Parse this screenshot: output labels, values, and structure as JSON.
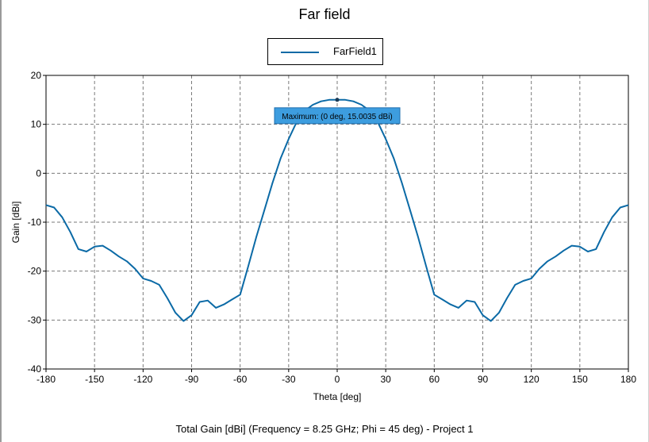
{
  "chart_data": {
    "type": "line",
    "title": "Far field",
    "xlabel": "Theta [deg]",
    "ylabel": "Gain [dBi]",
    "caption": "Total Gain [dBi] (Frequency = 8.25 GHz; Phi = 45 deg) - Project 1",
    "xlim": [
      -180,
      180
    ],
    "ylim": [
      -40,
      20
    ],
    "x_ticks": [
      -180,
      -150,
      -120,
      -90,
      -60,
      -30,
      0,
      30,
      60,
      90,
      120,
      150,
      180
    ],
    "x_tick_labels": [
      "-180",
      "-150",
      "-120",
      "-90",
      "-60",
      "-30",
      "0",
      "30",
      "60",
      "90",
      "120",
      "150",
      "180"
    ],
    "y_ticks": [
      -40,
      -30,
      -20,
      -10,
      0,
      10,
      20
    ],
    "y_tick_labels": [
      "-40",
      "-30",
      "-20",
      "-10",
      "0",
      "10",
      "20"
    ],
    "grid": true,
    "legend_position": "top-center",
    "series": [
      {
        "name": "FarField1",
        "color": "#0b6aa6",
        "x": [
          -180,
          -175,
          -170,
          -165,
          -160,
          -155,
          -150,
          -145,
          -140,
          -135,
          -130,
          -125,
          -120,
          -115,
          -110,
          -105,
          -100,
          -95,
          -90,
          -85,
          -80,
          -75,
          -70,
          -65,
          -60,
          -55,
          -50,
          -45,
          -40,
          -35,
          -30,
          -25,
          -20,
          -15,
          -10,
          -5,
          0,
          5,
          10,
          15,
          20,
          25,
          30,
          35,
          40,
          45,
          50,
          55,
          60,
          65,
          70,
          75,
          80,
          85,
          90,
          95,
          100,
          105,
          110,
          115,
          120,
          125,
          130,
          135,
          140,
          145,
          150,
          155,
          160,
          165,
          170,
          175,
          180
        ],
        "values": [
          -6.5,
          -7.0,
          -9.0,
          -12.0,
          -15.5,
          -16.0,
          -15.0,
          -14.8,
          -15.8,
          -17.0,
          -18.0,
          -19.5,
          -21.5,
          -22.0,
          -22.8,
          -25.5,
          -28.5,
          -30.2,
          -29.0,
          -26.3,
          -26.0,
          -27.5,
          -26.8,
          -25.8,
          -24.8,
          -19.0,
          -13.0,
          -7.5,
          -2.0,
          3.0,
          7.0,
          10.5,
          12.8,
          14.0,
          14.7,
          15.0,
          15.0,
          15.0,
          14.7,
          14.0,
          12.8,
          10.5,
          7.0,
          3.0,
          -2.0,
          -7.5,
          -13.0,
          -19.0,
          -24.8,
          -25.8,
          -26.8,
          -27.5,
          -26.0,
          -26.3,
          -29.0,
          -30.2,
          -28.5,
          -25.5,
          -22.8,
          -22.0,
          -21.5,
          -19.5,
          -18.0,
          -17.0,
          -15.8,
          -14.8,
          -15.0,
          -16.0,
          -15.5,
          -12.0,
          -9.0,
          -7.0,
          -6.5
        ]
      }
    ],
    "annotation": {
      "text": "Maximum: (0 deg, 15.0035 dBi)",
      "x": 0,
      "y": 15.0035,
      "background": "#3d9ddf"
    }
  }
}
